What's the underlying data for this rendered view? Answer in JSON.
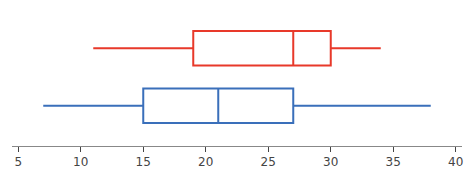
{
  "chart_data": {
    "type": "box",
    "orientation": "horizontal",
    "series": [
      {
        "color": "#e8392a",
        "min": 11,
        "q1": 19,
        "median": 27,
        "q3": 30,
        "max": 34
      },
      {
        "color": "#3a6fba",
        "min": 7,
        "q1": 15,
        "median": 21,
        "q3": 27,
        "max": 38
      }
    ],
    "xlim": [
      4.5,
      40.5
    ],
    "xticks": [
      5,
      10,
      15,
      20,
      25,
      30,
      35,
      40
    ],
    "grid": false,
    "tick_labels": "x"
  }
}
